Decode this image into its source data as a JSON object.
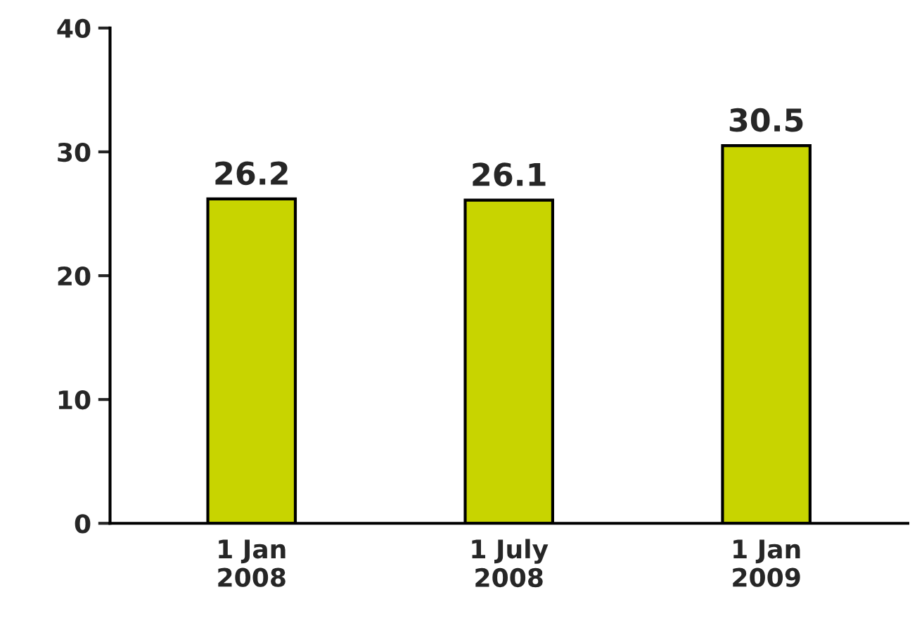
{
  "chart_data": {
    "type": "bar",
    "categories": [
      "1 Jan\n2008",
      "1 July\n2008",
      "1 Jan\n2009"
    ],
    "values": [
      26.2,
      26.1,
      30.5
    ],
    "color": "#c8d400",
    "ylim": [
      0,
      40
    ],
    "yticks": [
      0,
      10,
      20,
      30,
      40
    ],
    "grid": false,
    "data_labels": true
  }
}
